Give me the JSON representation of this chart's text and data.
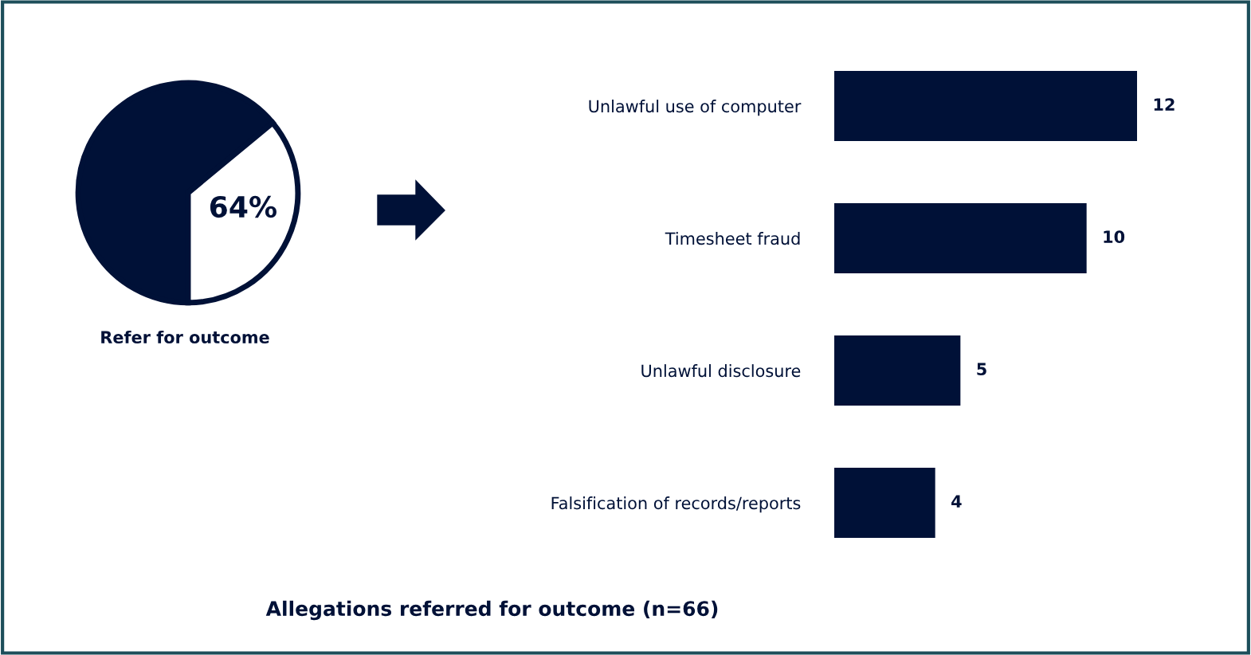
{
  "chart_data": [
    {
      "type": "pie",
      "xlabel": "Refer for outcome",
      "categories": [
        null,
        null
      ],
      "values": [
        64,
        36
      ],
      "colors": [
        "#001137",
        "#ffffff"
      ],
      "annotations": [
        "64%"
      ]
    },
    {
      "type": "bar",
      "orientation": "horizontal",
      "title": "Allegations referred for outcome (n=66)",
      "categories": [
        "Unlawful use of computer",
        "Timesheet fraud",
        "Unlawful disclosure",
        "Falsification of records/reports"
      ],
      "values": [
        12,
        10,
        5,
        4
      ],
      "color": "#001137",
      "data_labels": true
    }
  ]
}
